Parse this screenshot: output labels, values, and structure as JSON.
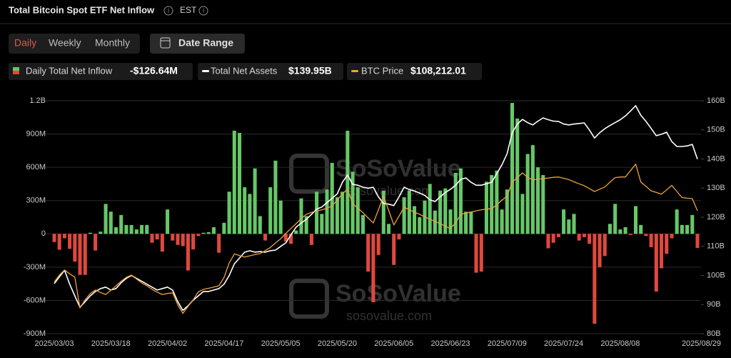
{
  "header": {
    "title": "Total Bitcoin Spot ETF Net Inflow",
    "timezone": "EST"
  },
  "controls": {
    "tabs": [
      "Daily",
      "Weekly",
      "Monthly"
    ],
    "active_tab": 0,
    "date_range": "Date Range"
  },
  "watermark": {
    "brand": "SoSoValue",
    "site": "sosovalue.com"
  },
  "chart_data": {
    "type": "bar",
    "categories": [
      "2025/03/03",
      null,
      null,
      null,
      null,
      null,
      null,
      null,
      null,
      null,
      null,
      "2025/03/18",
      null,
      null,
      null,
      null,
      null,
      null,
      null,
      null,
      null,
      null,
      "2025/04/02",
      null,
      null,
      null,
      null,
      null,
      null,
      null,
      null,
      null,
      null,
      "2025/04/17",
      null,
      null,
      null,
      null,
      null,
      null,
      null,
      null,
      null,
      null,
      "2025/05/05",
      null,
      null,
      null,
      null,
      null,
      null,
      null,
      null,
      null,
      null,
      "2025/05/20",
      null,
      null,
      null,
      null,
      null,
      null,
      null,
      null,
      null,
      null,
      "2025/06/05",
      null,
      null,
      null,
      null,
      null,
      null,
      null,
      null,
      null,
      null,
      "2025/06/23",
      null,
      null,
      null,
      null,
      null,
      null,
      null,
      null,
      null,
      null,
      "2025/07/09",
      null,
      null,
      null,
      null,
      null,
      null,
      null,
      null,
      null,
      null,
      "2025/07/24",
      null,
      null,
      null,
      null,
      null,
      null,
      null,
      null,
      null,
      null,
      "2025/08/08",
      null,
      null,
      null,
      null,
      null,
      null,
      null,
      null,
      null,
      null,
      null,
      null,
      null,
      null,
      "2025/08/29"
    ],
    "series": [
      {
        "name": "Daily Total Net Inflow",
        "type": "bar",
        "axis": "y",
        "color": "#66c767",
        "negative_color": "#e0483e",
        "latest_label": "-$126.64M",
        "values": [
          -74,
          -143,
          -40,
          -135,
          -250,
          -370,
          -370,
          10,
          -150,
          20,
          270,
          200,
          60,
          170,
          80,
          80,
          40,
          80,
          80,
          -80,
          -50,
          -160,
          220,
          -60,
          -100,
          -110,
          -330,
          -140,
          -20,
          10,
          15,
          60,
          -170,
          100,
          380,
          930,
          910,
          420,
          360,
          590,
          160,
          -60,
          420,
          660,
          300,
          -70,
          -90,
          30,
          320,
          160,
          -100,
          380,
          180,
          400,
          640,
          330,
          380,
          930,
          560,
          420,
          170,
          -340,
          -616,
          -190,
          390,
          90,
          -280,
          -50,
          330,
          390,
          250,
          150,
          300,
          450,
          210,
          390,
          410,
          220,
          550,
          590,
          200,
          200,
          -350,
          -340,
          470,
          530,
          570,
          220,
          400,
          1180,
          1040,
          360,
          720,
          800,
          600,
          530,
          -130,
          -80,
          -30,
          220,
          130,
          180,
          -60,
          -30,
          -90,
          -810,
          -300,
          -200,
          90,
          270,
          40,
          60,
          -10,
          250,
          80,
          -20,
          -120,
          -520,
          -310,
          -180,
          -40,
          220,
          80,
          80,
          170,
          -126.64
        ]
      },
      {
        "name": "Total Net Assets",
        "type": "line",
        "axis": "y2",
        "color": "#ffffff",
        "latest_label": "$139.95B",
        "values": [
          97.2,
          99.5,
          101.8,
          97,
          93,
          89.1,
          91,
          93,
          94.5,
          95.5,
          96,
          95,
          95.5,
          97.5,
          99,
          100,
          99,
          98,
          97,
          96,
          95,
          95.5,
          96,
          95,
          91,
          88,
          89.6,
          91.5,
          93,
          94.5,
          94.5,
          95,
          95.5,
          97,
          100,
          104,
          106,
          108,
          108.5,
          108,
          108.2,
          108,
          108.5,
          108.7,
          110,
          111.2,
          114,
          116.6,
          118,
          119.3,
          121,
          122.8,
          123.5,
          125,
          126.5,
          128,
          132,
          134.5,
          131.3,
          131,
          130.3,
          130,
          130.3,
          127,
          124.7,
          124.5,
          124,
          127,
          130.3,
          129.5,
          129,
          128.3,
          127.5,
          126,
          125.4,
          127,
          128.5,
          129.6,
          131,
          133,
          133.5,
          132,
          131,
          131,
          131.5,
          132,
          135,
          138,
          141.8,
          149,
          152,
          153.6,
          152.5,
          151.7,
          153,
          154.1,
          153.5,
          153,
          152.9,
          152,
          151.7,
          152,
          152.2,
          152.4,
          150,
          147.2,
          149,
          150.4,
          151.5,
          152.5,
          153.5,
          154.8,
          156.5,
          158.3,
          155,
          152.9,
          150.5,
          148,
          148.5,
          149.2,
          146,
          144.3,
          144.3,
          144.5,
          145,
          139.95
        ]
      },
      {
        "name": "BTC Price",
        "type": "line",
        "axis": "y3",
        "color": "#f0a13c",
        "latest_label": "$108,212.01",
        "values": [
          86100,
          88200,
          89800,
          88600,
          87600,
          78000,
          80500,
          82500,
          83600,
          82800,
          82200,
          83500,
          84900,
          86300,
          87500,
          88200,
          87000,
          85800,
          84900,
          83800,
          82900,
          82200,
          82500,
          82700,
          79000,
          76300,
          78500,
          80500,
          83000,
          83800,
          84100,
          84500,
          84900,
          87500,
          92000,
          94800,
          94300,
          93800,
          94200,
          94600,
          94900,
          95800,
          96800,
          98200,
          99500,
          101200,
          102700,
          104200,
          105800,
          107100,
          107700,
          108100,
          108500,
          109000,
          109700,
          111500,
          113500,
          114900,
          110400,
          109000,
          107600,
          106000,
          104400,
          108500,
          112700,
          108300,
          103800,
          106500,
          109300,
          108500,
          107800,
          107100,
          106300,
          105600,
          104900,
          104200,
          103400,
          102700,
          104500,
          107000,
          107500,
          107800,
          108200,
          108500,
          108700,
          108900,
          110000,
          111500,
          112700,
          117100,
          118500,
          120000,
          118600,
          117800,
          118000,
          118200,
          118400,
          118600,
          118700,
          118300,
          117900,
          117200,
          116600,
          116000,
          115100,
          114200,
          114900,
          115600,
          117100,
          118500,
          118700,
          118700,
          120700,
          122700,
          117100,
          115800,
          114400,
          113900,
          113400,
          114700,
          116100,
          114200,
          112300,
          112100,
          112000,
          108212.01
        ]
      }
    ],
    "ylim": [
      -900,
      1200
    ],
    "yticks": [
      {
        "value": 1200,
        "label": "1.2B"
      },
      {
        "value": 900,
        "label": "900M"
      },
      {
        "value": 600,
        "label": "600M"
      },
      {
        "value": 300,
        "label": "300M"
      },
      0,
      {
        "value": -300,
        "label": "-300M"
      },
      {
        "value": -600,
        "label": "-600M"
      },
      {
        "value": -900,
        "label": "-900M"
      }
    ],
    "y2lim": [
      80,
      160
    ],
    "y2ticks": [
      {
        "value": 160,
        "label": "160B"
      },
      {
        "value": 150,
        "label": "150B"
      },
      {
        "value": 140,
        "label": "140B"
      },
      {
        "value": 130,
        "label": "130B"
      },
      {
        "value": 120,
        "label": "120B"
      },
      {
        "value": 110,
        "label": "110B"
      },
      {
        "value": 100,
        "label": "100B"
      },
      {
        "value": 90,
        "label": "90B"
      },
      {
        "value": 80,
        "label": "80B"
      }
    ],
    "y3lim": [
      70000,
      142400
    ],
    "grid": true
  }
}
